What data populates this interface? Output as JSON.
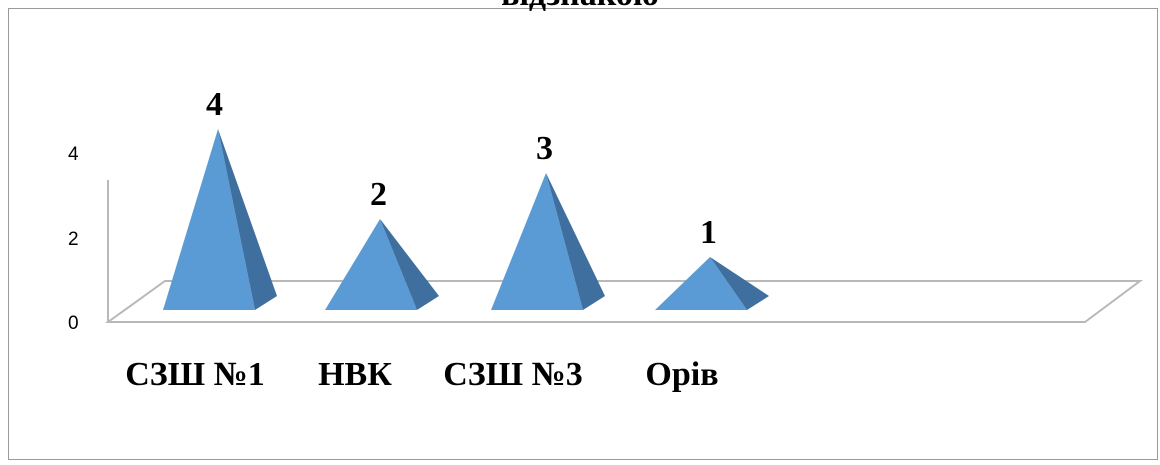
{
  "chart_data": {
    "type": "bar",
    "title": "відзнакою",
    "categories": [
      "СЗШ №1",
      "НВК",
      "СЗШ №3",
      "Орів"
    ],
    "values": [
      4,
      2,
      3,
      1
    ],
    "data_labels": [
      "4",
      "2",
      "3",
      "1"
    ],
    "y_ticks": [
      "0",
      "2",
      "4"
    ],
    "ylim": [
      0,
      4
    ],
    "grid": false,
    "legend": "none",
    "bar_shape": "pyramid-3d",
    "colors": {
      "front": "#5b9bd5",
      "side": "#3f6f9e",
      "floor": "#b8b8b8"
    }
  }
}
